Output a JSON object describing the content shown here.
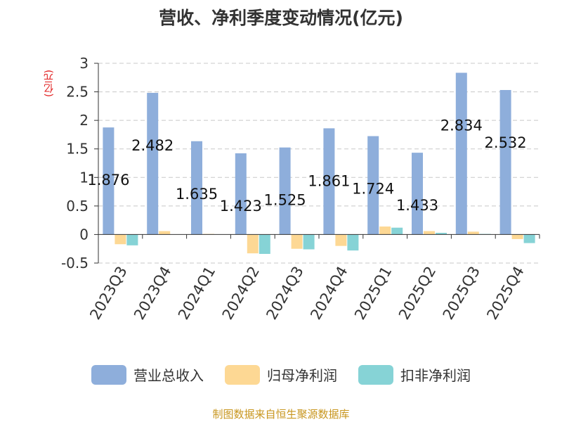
{
  "source_note": "制图数据来自恒生聚源数据库",
  "chart_data": {
    "type": "bar",
    "title": "营收、净利季度变动情况(亿元)",
    "ylabel": "(亿元)",
    "xlabel": "",
    "ylim": [
      -0.5,
      3
    ],
    "yticks": [
      -0.5,
      0,
      0.5,
      1,
      1.5,
      2,
      2.5,
      3
    ],
    "ytick_labels": [
      "-0.5",
      "0",
      "0.5",
      "1",
      "1.5",
      "2",
      "2.5",
      "3"
    ],
    "grid": true,
    "legend_position": "bottom",
    "categories": [
      "2023Q3",
      "2023Q4",
      "2024Q1",
      "2024Q2",
      "2024Q3",
      "2024Q4",
      "2025Q1",
      "2025Q2",
      "2025Q3",
      "2025Q4"
    ],
    "series": [
      {
        "name": "营业总收入",
        "color": "#8eaedb",
        "values": [
          1.876,
          2.482,
          1.635,
          1.423,
          1.525,
          1.861,
          1.724,
          1.433,
          2.834,
          2.532
        ],
        "data_labels": [
          "1.876",
          "2.482",
          "1.635",
          "1.423",
          "1.525",
          "1.861",
          "1.724",
          "1.433",
          "2.834",
          "2.532"
        ]
      },
      {
        "name": "归母净利润",
        "color": "#fdd894",
        "values": [
          -0.17,
          0.06,
          0.01,
          -0.33,
          -0.25,
          -0.2,
          0.14,
          0.06,
          0.05,
          -0.08
        ]
      },
      {
        "name": "扣非净利润",
        "color": "#86d3d6",
        "values": [
          -0.19,
          0.0,
          0.0,
          -0.34,
          -0.26,
          -0.28,
          0.12,
          0.03,
          0.01,
          -0.15
        ]
      }
    ]
  }
}
